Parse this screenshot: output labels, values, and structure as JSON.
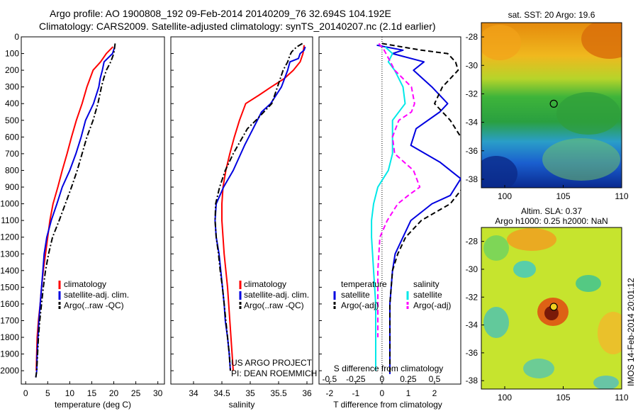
{
  "header": {
    "title_line1": "Argo profile: AO 1900808_192 09-Feb-2014 20140209_76 32.694S 104.192E",
    "title_line2": "Climatology: CARS2009. Satellite-adjusted climatology: synTS_20140207.nc (2.1d earlier)"
  },
  "side_text": "IMOS 14-Feb-2014 20:01:12",
  "credit": {
    "line1": "US ARGO PROJECT",
    "line2": "PI: DEAN ROEMMICH"
  },
  "colors": {
    "climatology": "#ff0000",
    "satellite": "#0000e0",
    "argo": "#000000",
    "sal_sat": "#00e8e8",
    "sal_argo": "#ff00ff"
  },
  "chart_data": [
    {
      "type": "line",
      "name": "temperature profile",
      "xlabel": "temperature (deg C)",
      "ylabel": "",
      "xlim": [
        -1,
        31.5
      ],
      "ylim": [
        2080,
        0
      ],
      "xticks": [
        "0",
        "5",
        "10",
        "15",
        "20",
        "25",
        "30"
      ],
      "yticks": [
        "0",
        "100",
        "200",
        "300",
        "400",
        "500",
        "600",
        "700",
        "800",
        "900",
        "1000",
        "1100",
        "1200",
        "1300",
        "1400",
        "1500",
        "1600",
        "1700",
        "1800",
        "1900",
        "2000"
      ],
      "legend": [
        "climatology",
        "satellite-adj. clim.",
        "Argo(..raw -QC)"
      ],
      "series": [
        {
          "name": "climatology",
          "style": "solid",
          "color": "#ff0000",
          "x": [
            19.8,
            18.3,
            17.0,
            15.3,
            13.9,
            12.8,
            11.5,
            10.4,
            9.4,
            8.3,
            7.3,
            6.2,
            5.5,
            5.0,
            4.5,
            4.0,
            3.6,
            3.3,
            2.9,
            2.6,
            2.4
          ],
          "y": [
            60,
            100,
            150,
            200,
            300,
            400,
            500,
            600,
            700,
            800,
            900,
            1000,
            1100,
            1200,
            1300,
            1400,
            1500,
            1600,
            1700,
            1800,
            2000
          ]
        },
        {
          "name": "satellite-adj. clim.",
          "style": "solid",
          "color": "#0000e0",
          "x": [
            20.2,
            19.7,
            17.8,
            17.4,
            16.9,
            16.6,
            15.4,
            13.6,
            12.6,
            11.4,
            10.0,
            8.3,
            7.1,
            5.8,
            4.8,
            4.2,
            3.9,
            3.6,
            3.3,
            3.0,
            2.8,
            2.6,
            2.5,
            2.3
          ],
          "y": [
            60,
            100,
            150,
            200,
            250,
            300,
            400,
            500,
            600,
            700,
            800,
            900,
            1000,
            1100,
            1200,
            1300,
            1400,
            1500,
            1600,
            1700,
            1800,
            1900,
            2000,
            2040
          ]
        },
        {
          "name": "Argo(..raw -QC)",
          "style": "dashdot",
          "color": "#000000",
          "x": [
            20.3,
            20.0,
            19.3,
            18.3,
            17.7,
            17.2,
            16.4,
            15.3,
            13.9,
            12.8,
            11.7,
            10.4,
            9.0,
            7.6,
            6.1,
            5.2,
            4.5,
            4.0,
            3.6,
            3.2,
            2.9,
            2.7,
            2.5,
            2.3
          ],
          "y": [
            40,
            100,
            150,
            200,
            250,
            300,
            400,
            500,
            600,
            700,
            800,
            900,
            1000,
            1100,
            1200,
            1300,
            1400,
            1500,
            1600,
            1700,
            1800,
            1900,
            2000,
            2040
          ]
        }
      ]
    },
    {
      "type": "line",
      "name": "salinity profile",
      "xlabel": "salinity",
      "ylabel": "",
      "xlim": [
        33.6,
        36.1
      ],
      "ylim": [
        2080,
        0
      ],
      "xticks": [
        "34",
        "34.5",
        "35",
        "35.5",
        "36"
      ],
      "legend": [
        "climatology",
        "satellite-adj. clim.",
        "Argo(..raw -QC)"
      ],
      "series": [
        {
          "name": "climatology",
          "style": "solid",
          "color": "#ff0000",
          "x": [
            35.95,
            35.93,
            35.88,
            35.76,
            35.6,
            35.37,
            35.15,
            34.92,
            34.81,
            34.72,
            34.64,
            34.57,
            34.52,
            34.5,
            34.5,
            34.52,
            34.54,
            34.57,
            34.6,
            34.62,
            34.66,
            34.68,
            34.7
          ],
          "y": [
            50,
            100,
            150,
            200,
            250,
            300,
            350,
            400,
            500,
            600,
            700,
            800,
            900,
            1000,
            1100,
            1200,
            1300,
            1400,
            1500,
            1600,
            1800,
            1900,
            2000
          ]
        },
        {
          "name": "satellite-adj. clim.",
          "style": "solid",
          "color": "#0000e0",
          "x": [
            35.97,
            35.95,
            35.88,
            35.85,
            35.7,
            35.66,
            35.55,
            35.36,
            35.2,
            35.05,
            34.9,
            34.7,
            34.53,
            34.4,
            34.38,
            34.4,
            34.45,
            34.48,
            34.51,
            34.54,
            34.56,
            34.6,
            34.63,
            34.65
          ],
          "y": [
            60,
            80,
            100,
            130,
            150,
            200,
            300,
            400,
            450,
            550,
            650,
            800,
            900,
            1000,
            1100,
            1200,
            1300,
            1400,
            1500,
            1600,
            1700,
            1800,
            1900,
            2000
          ]
        },
        {
          "name": "Argo(..raw -QC)",
          "style": "dashdot",
          "color": "#000000",
          "x": [
            35.92,
            35.82,
            35.73,
            35.7,
            35.66,
            35.58,
            35.48,
            35.38,
            35.24,
            35.1,
            34.95,
            34.7,
            34.56,
            34.46,
            34.39,
            34.38,
            34.4,
            34.44,
            34.47,
            34.51,
            34.54,
            34.57,
            34.6,
            34.63,
            34.65
          ],
          "y": [
            40,
            60,
            90,
            110,
            150,
            200,
            300,
            400,
            450,
            500,
            550,
            700,
            800,
            900,
            1000,
            1100,
            1200,
            1300,
            1400,
            1500,
            1600,
            1700,
            1800,
            1900,
            2000
          ]
        }
      ]
    },
    {
      "type": "line",
      "name": "difference from climatology",
      "xlabel": "T difference from climatology",
      "xlabel2": "S difference from climatology",
      "xlim": [
        -2.4,
        3.0
      ],
      "xlim_salinity": [
        -0.6,
        0.75
      ],
      "ylim": [
        2080,
        0
      ],
      "xticks": [
        "-2",
        "-1",
        "0",
        "1",
        "2"
      ],
      "xticks2": [
        "-0.5",
        "-0.25",
        "0",
        "0.25",
        "0.5"
      ],
      "legend_titles": [
        "temperature",
        "salinity"
      ],
      "legend": [
        "satellite",
        "Argo(-adj)",
        "satellite",
        "Argo(-adj)"
      ],
      "series": [
        {
          "name": "temperature satellite",
          "style": "solid",
          "color": "#0000e0",
          "x": [
            -0.2,
            0.8,
            0.4,
            1.6,
            1.2,
            1.9,
            2.5,
            2.2,
            1.3,
            1.1,
            2.2,
            3.0,
            2.6,
            1.9,
            1.1,
            0.8,
            0.5,
            0.4,
            0.3,
            0.3,
            0.3
          ],
          "y": [
            50,
            80,
            100,
            150,
            200,
            300,
            400,
            450,
            550,
            650,
            750,
            850,
            950,
            1000,
            1100,
            1200,
            1300,
            1400,
            1600,
            1800,
            2020
          ]
        },
        {
          "name": "temperature Argo(-adj)",
          "style": "dashed",
          "color": "#000000",
          "x": [
            0.0,
            1.5,
            2.5,
            2.8,
            2.9,
            2.3,
            2.0,
            2.6,
            3.0,
            3.3,
            3.5,
            3.1,
            2.6,
            1.5,
            0.9,
            0.6,
            0.4,
            0.3,
            0.3,
            0.3
          ],
          "y": [
            40,
            80,
            100,
            150,
            200,
            300,
            400,
            500,
            600,
            700,
            800,
            900,
            1000,
            1100,
            1200,
            1300,
            1400,
            1600,
            1800,
            2020
          ]
        },
        {
          "name": "salinity satellite",
          "style": "solid",
          "color": "#00e8e8",
          "x": [
            0.03,
            0.1,
            0.06,
            0.12,
            0.2,
            0.22,
            0.1,
            0.1,
            0.1,
            0.06,
            -0.04,
            -0.08,
            -0.1,
            -0.1,
            -0.08,
            -0.06,
            -0.06,
            -0.06
          ],
          "y": [
            60,
            100,
            150,
            200,
            300,
            400,
            500,
            600,
            700,
            800,
            900,
            1000,
            1100,
            1200,
            1400,
            1600,
            1800,
            2000
          ]
        },
        {
          "name": "salinity Argo(-adj)",
          "style": "dashed",
          "color": "#ff00ff",
          "x": [
            -0.03,
            0.02,
            0.08,
            0.12,
            0.28,
            0.31,
            0.28,
            0.16,
            0.1,
            0.12,
            0.3,
            0.36,
            0.25,
            0.15,
            0.05,
            -0.02,
            -0.04,
            -0.04,
            -0.04
          ],
          "y": [
            40,
            80,
            150,
            200,
            300,
            400,
            450,
            500,
            600,
            700,
            800,
            900,
            950,
            1000,
            1100,
            1200,
            1400,
            1600,
            1800
          ]
        }
      ]
    },
    {
      "type": "heatmap",
      "name": "sat. SST map",
      "title": "sat. SST: 20 Argo: 19.6",
      "xlim": [
        98,
        110
      ],
      "ylim": [
        -38.6,
        -27
      ],
      "xticks": [
        "100",
        "105",
        "110"
      ],
      "yticks": [
        "-28",
        "-30",
        "-32",
        "-34",
        "-36",
        "-38"
      ],
      "marker": {
        "lon": 104.192,
        "lat": -32.694
      }
    },
    {
      "type": "heatmap",
      "name": "altimetry SLA map",
      "title": "Altim. SLA: 0.37",
      "subtitle": "Argo h1000: 0.25 h2000: NaN",
      "xlim": [
        98,
        110
      ],
      "ylim": [
        -38.6,
        -27
      ],
      "xticks": [
        "100",
        "105",
        "110"
      ],
      "yticks": [
        "-28",
        "-30",
        "-32",
        "-34",
        "-36",
        "-38"
      ],
      "marker": {
        "lon": 104.192,
        "lat": -32.694
      }
    }
  ]
}
